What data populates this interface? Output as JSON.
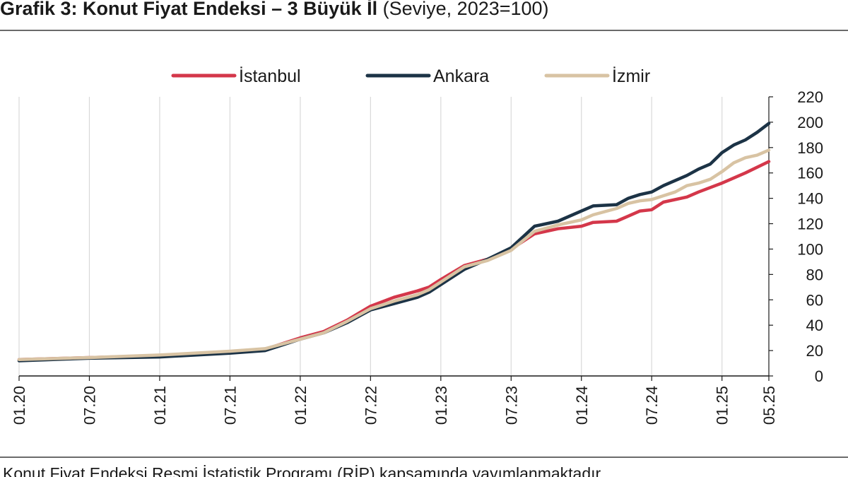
{
  "header": {
    "title_bold": "Grafik 3: Konut Fiyat Endeksi – 3 Büyük İl",
    "title_sub": " (Seviye, 2023=100)"
  },
  "footer": {
    "note": "Konut Fiyat Endeksi Resmi İstatistik Programı (RİP) kapsamında yayımlanmaktadır."
  },
  "chart_data": {
    "type": "line",
    "title": "Konut Fiyat Endeksi – 3 Büyük İl",
    "subtitle": "(Seviye, 2023=100)",
    "xlabel": "",
    "ylabel": "",
    "ylim": [
      0,
      220
    ],
    "yticks": [
      0,
      20,
      40,
      60,
      80,
      100,
      120,
      140,
      160,
      180,
      200,
      220
    ],
    "x_tick_labels": [
      "01.20",
      "07.20",
      "01.21",
      "07.21",
      "01.22",
      "07.22",
      "01.23",
      "07.23",
      "01.24",
      "07.24",
      "01.25",
      "05.25"
    ],
    "x_tick_months": [
      0,
      6,
      12,
      18,
      24,
      30,
      36,
      42,
      48,
      54,
      60,
      64
    ],
    "x_range_months": [
      0,
      64
    ],
    "grid": "vertical",
    "legend_position": "top",
    "y_axis_side": "right",
    "series": [
      {
        "name": "İstanbul",
        "color": "#d4374a",
        "points": [
          [
            0,
            13
          ],
          [
            6,
            14.5
          ],
          [
            12,
            16
          ],
          [
            18,
            19
          ],
          [
            21,
            21
          ],
          [
            22,
            24
          ],
          [
            24,
            30
          ],
          [
            26,
            35
          ],
          [
            28,
            44
          ],
          [
            30,
            55
          ],
          [
            32,
            62
          ],
          [
            34,
            67
          ],
          [
            35,
            70
          ],
          [
            36,
            76
          ],
          [
            38,
            87
          ],
          [
            40,
            92
          ],
          [
            42,
            100
          ],
          [
            44,
            112
          ],
          [
            46,
            116
          ],
          [
            48,
            118
          ],
          [
            49,
            121
          ],
          [
            51,
            122
          ],
          [
            52,
            126
          ],
          [
            53,
            130
          ],
          [
            54,
            131
          ],
          [
            55,
            137
          ],
          [
            57,
            141
          ],
          [
            58,
            145
          ],
          [
            60,
            152
          ],
          [
            62,
            160
          ],
          [
            64,
            169
          ]
        ]
      },
      {
        "name": "Ankara",
        "color": "#1c3346",
        "points": [
          [
            0,
            12
          ],
          [
            6,
            14
          ],
          [
            12,
            15
          ],
          [
            18,
            18
          ],
          [
            21,
            20
          ],
          [
            22,
            23
          ],
          [
            24,
            29
          ],
          [
            26,
            34
          ],
          [
            28,
            42
          ],
          [
            30,
            52
          ],
          [
            32,
            57
          ],
          [
            34,
            62
          ],
          [
            35,
            66
          ],
          [
            36,
            72
          ],
          [
            38,
            84
          ],
          [
            40,
            92
          ],
          [
            42,
            101
          ],
          [
            44,
            118
          ],
          [
            46,
            122
          ],
          [
            48,
            130
          ],
          [
            49,
            134
          ],
          [
            51,
            135
          ],
          [
            52,
            140
          ],
          [
            53,
            143
          ],
          [
            54,
            145
          ],
          [
            55,
            150
          ],
          [
            57,
            158
          ],
          [
            58,
            163
          ],
          [
            59,
            167
          ],
          [
            60,
            176
          ],
          [
            61,
            182
          ],
          [
            62,
            186
          ],
          [
            63,
            192
          ],
          [
            64,
            199
          ]
        ]
      },
      {
        "name": "İzmir",
        "color": "#d8c3a3",
        "points": [
          [
            0,
            13
          ],
          [
            6,
            14.5
          ],
          [
            12,
            16.5
          ],
          [
            18,
            19.5
          ],
          [
            21,
            21.5
          ],
          [
            22,
            24
          ],
          [
            24,
            29
          ],
          [
            26,
            34
          ],
          [
            28,
            43
          ],
          [
            30,
            53
          ],
          [
            32,
            59
          ],
          [
            34,
            64
          ],
          [
            35,
            68
          ],
          [
            36,
            74
          ],
          [
            38,
            86
          ],
          [
            40,
            91
          ],
          [
            42,
            99
          ],
          [
            44,
            114
          ],
          [
            46,
            119
          ],
          [
            48,
            123
          ],
          [
            49,
            127
          ],
          [
            51,
            132
          ],
          [
            52,
            136
          ],
          [
            53,
            138
          ],
          [
            54,
            139
          ],
          [
            55,
            142
          ],
          [
            56,
            145
          ],
          [
            57,
            150
          ],
          [
            58,
            152
          ],
          [
            59,
            155
          ],
          [
            60,
            161
          ],
          [
            61,
            168
          ],
          [
            62,
            172
          ],
          [
            63,
            174
          ],
          [
            64,
            178
          ]
        ]
      }
    ]
  }
}
